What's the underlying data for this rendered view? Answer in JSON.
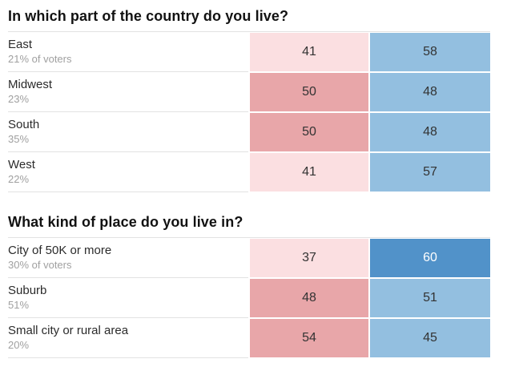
{
  "chart_data": [
    {
      "type": "table",
      "title": "In which part of the country do you live?",
      "columns": [
        "group",
        "share_of_voters",
        "pink_value",
        "blue_value"
      ],
      "rows": [
        {
          "label": "East",
          "sublabel": "21% of voters",
          "pink": 41,
          "blue": 58,
          "pink_level": "light",
          "blue_level": "light"
        },
        {
          "label": "Midwest",
          "sublabel": "23%",
          "pink": 50,
          "blue": 48,
          "pink_level": "mid",
          "blue_level": "light"
        },
        {
          "label": "South",
          "sublabel": "35%",
          "pink": 50,
          "blue": 48,
          "pink_level": "mid",
          "blue_level": "light"
        },
        {
          "label": "West",
          "sublabel": "22%",
          "pink": 41,
          "blue": 57,
          "pink_level": "light",
          "blue_level": "light"
        }
      ]
    },
    {
      "type": "table",
      "title": "What kind of place do you live in?",
      "columns": [
        "group",
        "share_of_voters",
        "pink_value",
        "blue_value"
      ],
      "rows": [
        {
          "label": "City of 50K or more",
          "sublabel": "30% of voters",
          "pink": 37,
          "blue": 60,
          "pink_level": "light",
          "blue_level": "dark"
        },
        {
          "label": "Suburb",
          "sublabel": "51%",
          "pink": 48,
          "blue": 51,
          "pink_level": "mid",
          "blue_level": "light"
        },
        {
          "label": "Small city or rural area",
          "sublabel": "20%",
          "pink": 54,
          "blue": 45,
          "pink_level": "mid",
          "blue_level": "light"
        }
      ]
    }
  ],
  "colors": {
    "pink_light": "#fbdfe1",
    "pink_mid": "#e8a6a9",
    "blue_light": "#93bfe0",
    "blue_dark": "#5192c9",
    "divider": "#e2e2e2",
    "title_text": "#121212",
    "label_text": "#2b2b2b",
    "sublabel_text": "#a0a0a0",
    "cell_text": "#333333",
    "dark_cell_text": "#ffffff"
  }
}
